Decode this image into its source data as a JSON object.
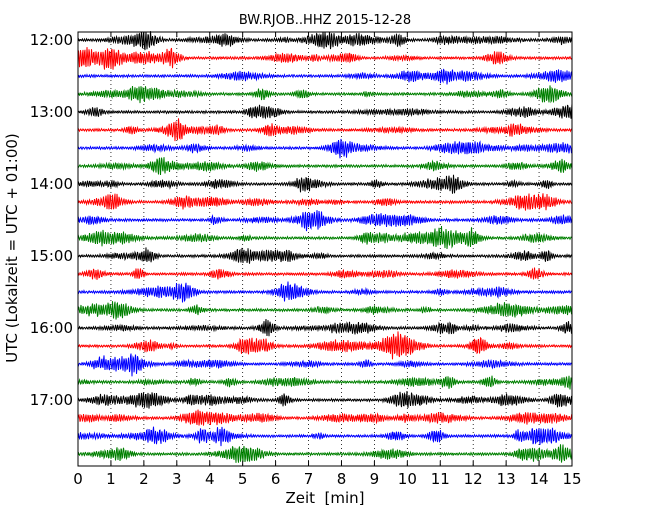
{
  "chart_data": {
    "type": "line",
    "title": "BW.RJOB..HHZ 2015-12-28",
    "xlabel": "Zeit  [min]",
    "ylabel": "UTC (Lokalzeit = UTC + 01:00)",
    "xlim": [
      0,
      15
    ],
    "x_ticks": [
      "0",
      "1",
      "2",
      "3",
      "4",
      "5",
      "6",
      "7",
      "8",
      "9",
      "10",
      "11",
      "12",
      "13",
      "14",
      "15"
    ],
    "y_ticks": [
      "12:00",
      "13:00",
      "14:00",
      "15:00",
      "16:00",
      "17:00"
    ],
    "trace_start_times": [
      "12:00",
      "12:15",
      "12:30",
      "12:45",
      "13:00",
      "13:15",
      "13:30",
      "13:45",
      "14:00",
      "14:15",
      "14:30",
      "14:45",
      "15:00",
      "15:15",
      "15:30",
      "15:45",
      "16:00",
      "16:15",
      "16:30",
      "16:45",
      "17:00",
      "17:15",
      "17:30",
      "17:45"
    ],
    "trace_colors": [
      "#000000",
      "#ff0000",
      "#0000ff",
      "#008000"
    ],
    "grid": "vertical dotted lines at each minute",
    "legend": "none"
  }
}
